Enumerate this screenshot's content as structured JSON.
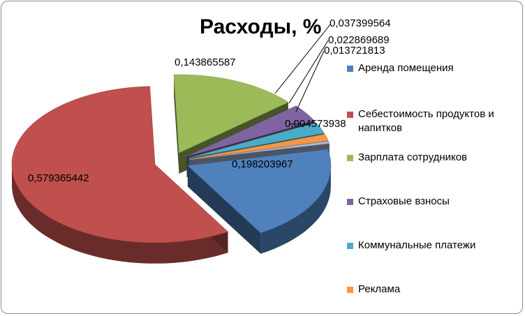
{
  "chart_data": {
    "type": "pie",
    "title": "Расходы, %",
    "categories": [
      "Аренда помещения",
      "Себестоимость продуктов и напитков",
      "Зарплата сотрудников",
      "Страховые взносы",
      "Коммунальные платежи",
      "Реклама",
      ""
    ],
    "values": [
      0.198203967,
      0.579365442,
      0.143865587,
      0.037399564,
      0.022869689,
      0.013721813,
      0.004573938
    ],
    "labels": [
      "0,198203967",
      "0,579365442",
      "0,143865587",
      "0,037399564",
      "0,022869689",
      "0,013721813",
      "0,004573938"
    ],
    "colors": [
      "#4f81bd",
      "#c0504d",
      "#9bbb59",
      "#8064a2",
      "#4bacc6",
      "#f79646",
      "#aabad7"
    ],
    "legend_position": "right",
    "style": "3d-exploded"
  }
}
